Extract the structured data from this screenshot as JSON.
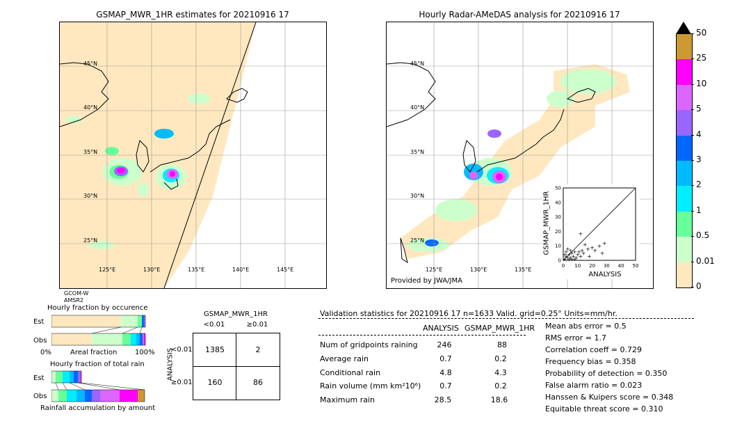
{
  "left_map": {
    "title": "GSMAP_MWR_1HR estimates for 20210916 17",
    "lat_labels": [
      "45°N",
      "40°N",
      "35°N",
      "30°N",
      "25°N"
    ],
    "lon_labels": [
      "125°E",
      "130°E",
      "135°E",
      "140°E",
      "145°E"
    ],
    "sensor_lines": [
      "GCOM-W",
      "AMSR2"
    ]
  },
  "right_map": {
    "title": "Hourly Radar-AMeDAS analysis for 20210916 17",
    "lat_labels": [
      "45°N",
      "40°N",
      "35°N",
      "30°N",
      "25°N"
    ],
    "lon_labels": [
      "125°E",
      "130°E",
      "135°E"
    ],
    "credit": "Provided by JWA/JMA"
  },
  "colorbar": {
    "labels": [
      "50",
      "25",
      "10",
      "5",
      "4",
      "3",
      "2",
      "1",
      "0.5",
      "0.01",
      "0"
    ],
    "colors": [
      "#cc9933",
      "#ff00ff",
      "#dd66ff",
      "#9966ff",
      "#0066ff",
      "#00bbff",
      "#00eeff",
      "#66ff99",
      "#ccffcc",
      "#ffe8c0"
    ]
  },
  "scatter": {
    "xlabel": "ANALYSIS",
    "ylabel": "GSMAP_MWR_1HR",
    "ticks": [
      "0",
      "10",
      "20",
      "30",
      "40",
      "50"
    ]
  },
  "occurrence": {
    "title": "Hourly fraction by occurence",
    "row_est": "Est",
    "row_obs": "Obs",
    "axis_left": "0%",
    "axis_mid": "Areal fraction",
    "axis_right": "100%"
  },
  "total_rain": {
    "title": "Hourly fraction of total rain",
    "row_est": "Est",
    "row_obs": "Obs",
    "axis_label": "Rainfall accumulation by amount"
  },
  "contingency": {
    "title": "GSMAP_MWR_1HR",
    "col_lt": "<0.01",
    "col_ge": "≥0.01",
    "row_axis": "ANALYSIS",
    "row_lt": "<0.01",
    "row_ge": "≥0.01",
    "a": "1385",
    "b": "2",
    "c": "160",
    "d": "86"
  },
  "validation": {
    "header": "Validation statistics for 20210916 17  n=1633 Valid. grid=0.25° Units=mm/hr.",
    "col_analysis": "ANALYSIS",
    "col_gsmap": "GSMAP_MWR_1HR",
    "rows": [
      {
        "label": "Num of gridpoints raining",
        "analysis": "246",
        "gsmap": "88"
      },
      {
        "label": "Average rain",
        "analysis": "0.7",
        "gsmap": "0.2"
      },
      {
        "label": "Conditional rain",
        "analysis": "4.8",
        "gsmap": "4.3"
      },
      {
        "label": "Rain volume (mm km²10⁶)",
        "analysis": "0.7",
        "gsmap": "0.2"
      },
      {
        "label": "Maximum rain",
        "analysis": "28.5",
        "gsmap": "18.6"
      }
    ],
    "scores": [
      "Mean abs error =    0.5",
      "RMS error =    1.7",
      "Correlation coeff =  0.729",
      "Frequency bias =  0.358",
      "Probability of detection =  0.350",
      "False alarm ratio =  0.023",
      "Hanssen & Kuipers score =  0.348",
      "Equitable threat score =  0.310"
    ]
  },
  "chart_data": {
    "type": "scatter",
    "title": "",
    "xlabel": "ANALYSIS",
    "ylabel": "GSMAP_MWR_1HR",
    "xlim": [
      0,
      50
    ],
    "ylim": [
      0,
      50
    ],
    "points": [
      [
        1,
        1
      ],
      [
        2,
        3
      ],
      [
        3,
        2
      ],
      [
        4,
        4
      ],
      [
        5,
        2
      ],
      [
        6,
        5
      ],
      [
        7,
        3
      ],
      [
        8,
        6
      ],
      [
        9,
        2
      ],
      [
        10,
        4
      ],
      [
        11,
        6
      ],
      [
        12,
        3
      ],
      [
        13,
        7
      ],
      [
        14,
        5
      ],
      [
        15,
        11
      ],
      [
        17,
        8
      ],
      [
        18,
        3
      ],
      [
        20,
        9
      ],
      [
        22,
        7
      ],
      [
        25,
        10
      ],
      [
        27,
        5
      ],
      [
        28.5,
        12
      ],
      [
        12,
        18.6
      ],
      [
        2,
        6
      ],
      [
        3,
        8
      ],
      [
        5,
        7
      ],
      [
        1,
        4
      ],
      [
        4,
        1
      ],
      [
        6,
        1
      ],
      [
        8,
        1
      ]
    ]
  }
}
